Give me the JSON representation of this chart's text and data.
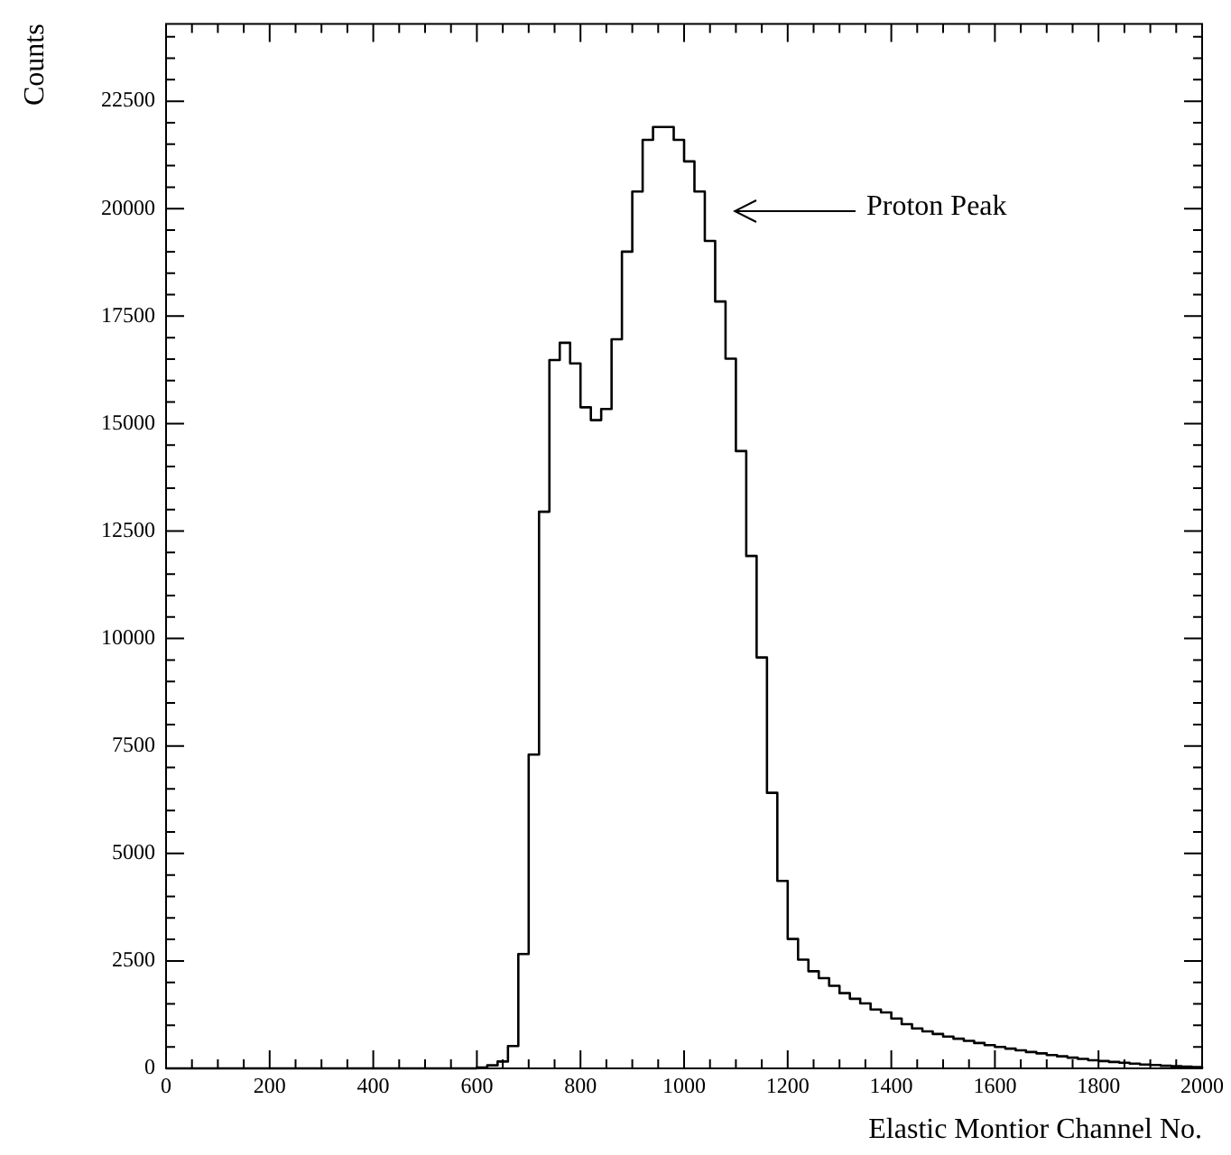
{
  "chart_data": {
    "type": "histogram",
    "xlabel": "Elastic Montior Channel No.",
    "ylabel": "Counts",
    "bins": [
      0,
      20,
      40,
      60,
      80,
      100,
      120,
      140,
      160,
      180,
      200,
      220,
      240,
      260,
      280,
      300,
      320,
      340,
      360,
      380,
      400,
      420,
      440,
      460,
      480,
      500,
      520,
      540,
      560,
      580,
      600,
      620,
      640,
      660,
      680,
      700,
      720,
      740,
      760,
      780,
      800,
      820,
      840,
      860,
      880,
      900,
      920,
      940,
      960,
      980,
      1000,
      1020,
      1040,
      1060,
      1080,
      1100,
      1120,
      1140,
      1160,
      1180,
      1200,
      1220,
      1240,
      1260,
      1280,
      1300,
      1320,
      1340,
      1360,
      1380,
      1400,
      1420,
      1440,
      1460,
      1480,
      1500,
      1520,
      1540,
      1560,
      1580,
      1600,
      1620,
      1640,
      1660,
      1680,
      1700,
      1720,
      1740,
      1760,
      1780,
      1800,
      1820,
      1840,
      1860,
      1880,
      1900,
      1920,
      1940,
      1960,
      1980,
      2000
    ],
    "values": [
      0,
      0,
      0,
      0,
      0,
      0,
      0,
      0,
      0,
      0,
      0,
      0,
      0,
      0,
      0,
      0,
      0,
      0,
      0,
      0,
      0,
      0,
      0,
      0,
      0,
      0,
      0,
      0,
      0,
      0,
      20,
      70,
      160,
      520,
      2660,
      7300,
      12950,
      16480,
      16880,
      16400,
      15380,
      15080,
      15340,
      16960,
      19000,
      20400,
      21600,
      21900,
      21900,
      21600,
      21100,
      20400,
      19250,
      17840,
      16510,
      14360,
      11920,
      9560,
      6410,
      4360,
      3010,
      2530,
      2260,
      2100,
      1920,
      1750,
      1620,
      1510,
      1370,
      1300,
      1160,
      1030,
      930,
      860,
      800,
      740,
      690,
      640,
      590,
      540,
      500,
      460,
      420,
      380,
      350,
      310,
      280,
      250,
      220,
      190,
      170,
      150,
      130,
      110,
      90,
      80,
      60,
      50,
      40,
      30
    ],
    "color": "#000000",
    "xlim": [
      0,
      2000
    ],
    "xticks": [
      0,
      {
        "value": 50,
        "label": null
      },
      {
        "value": 100,
        "label": null
      },
      {
        "value": 150,
        "label": null
      },
      200,
      {
        "value": 250,
        "label": null
      },
      {
        "value": 300,
        "label": null
      },
      {
        "value": 350,
        "label": null
      },
      400,
      {
        "value": 450,
        "label": null
      },
      {
        "value": 500,
        "label": null
      },
      {
        "value": 550,
        "label": null
      },
      600,
      {
        "value": 650,
        "label": null
      },
      {
        "value": 700,
        "label": null
      },
      {
        "value": 750,
        "label": null
      },
      800,
      {
        "value": 850,
        "label": null
      },
      {
        "value": 900,
        "label": null
      },
      {
        "value": 950,
        "label": null
      },
      1000,
      {
        "value": 1050,
        "label": null
      },
      {
        "value": 1100,
        "label": null
      },
      {
        "value": 1150,
        "label": null
      },
      1200,
      {
        "value": 1250,
        "label": null
      },
      {
        "value": 1300,
        "label": null
      },
      {
        "value": 1350,
        "label": null
      },
      1400,
      {
        "value": 1450,
        "label": null
      },
      {
        "value": 1500,
        "label": null
      },
      {
        "value": 1550,
        "label": null
      },
      1600,
      {
        "value": 1650,
        "label": null
      },
      {
        "value": 1700,
        "label": null
      },
      {
        "value": 1750,
        "label": null
      },
      1800,
      {
        "value": 1850,
        "label": null
      },
      {
        "value": 1900,
        "label": null
      },
      {
        "value": 1950,
        "label": null
      },
      2000
    ],
    "ylim": [
      0,
      24300
    ],
    "yticks": [
      0,
      {
        "value": 500,
        "label": null
      },
      {
        "value": 1000,
        "label": null
      },
      {
        "value": 1500,
        "label": null
      },
      {
        "value": 2000,
        "label": null
      },
      2500,
      {
        "value": 3000,
        "label": null
      },
      {
        "value": 3500,
        "label": null
      },
      {
        "value": 4000,
        "label": null
      },
      {
        "value": 4500,
        "label": null
      },
      5000,
      {
        "value": 5500,
        "label": null
      },
      {
        "value": 6000,
        "label": null
      },
      {
        "value": 6500,
        "label": null
      },
      {
        "value": 7000,
        "label": null
      },
      7500,
      {
        "value": 8000,
        "label": null
      },
      {
        "value": 8500,
        "label": null
      },
      {
        "value": 9000,
        "label": null
      },
      {
        "value": 9500,
        "label": null
      },
      10000,
      {
        "value": 10500,
        "label": null
      },
      {
        "value": 11000,
        "label": null
      },
      {
        "value": 11500,
        "label": null
      },
      {
        "value": 12000,
        "label": null
      },
      12500,
      {
        "value": 13000,
        "label": null
      },
      {
        "value": 13500,
        "label": null
      },
      {
        "value": 14000,
        "label": null
      },
      {
        "value": 14500,
        "label": null
      },
      15000,
      {
        "value": 15500,
        "label": null
      },
      {
        "value": 16000,
        "label": null
      },
      {
        "value": 16500,
        "label": null
      },
      {
        "value": 17000,
        "label": null
      },
      17500,
      {
        "value": 18000,
        "label": null
      },
      {
        "value": 18500,
        "label": null
      },
      {
        "value": 19000,
        "label": null
      },
      {
        "value": 19500,
        "label": null
      },
      20000,
      {
        "value": 20500,
        "label": null
      },
      {
        "value": 21000,
        "label": null
      },
      {
        "value": 21500,
        "label": null
      },
      {
        "value": 22000,
        "label": null
      },
      22500,
      {
        "value": 23000,
        "label": null
      },
      {
        "value": 23500,
        "label": null
      },
      {
        "value": 24000,
        "label": null
      }
    ],
    "annotations": [
      "Proton Peak"
    ]
  }
}
